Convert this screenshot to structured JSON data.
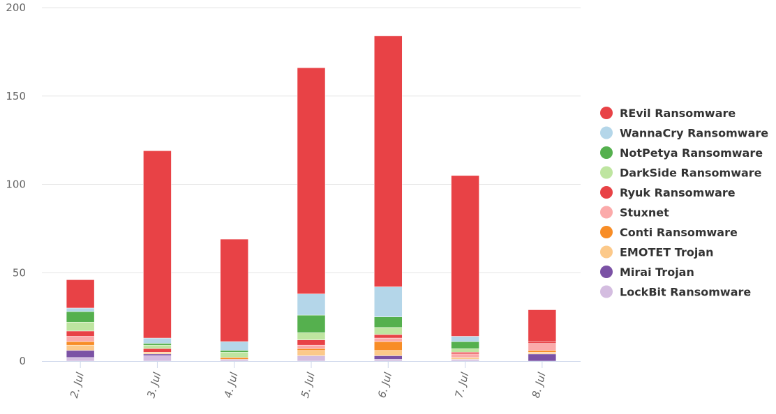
{
  "chart_data": {
    "type": "bar",
    "stacked": true,
    "categories": [
      "2. Jul",
      "3. Jul",
      "4. Jul",
      "5. Jul",
      "6. Jul",
      "7. Jul",
      "8. Jul"
    ],
    "ylim": [
      0,
      200
    ],
    "yticks": [
      0,
      50,
      100,
      150,
      200
    ],
    "grid": true,
    "legend_position": "right",
    "series": [
      {
        "name": "LockBit Ransomware",
        "color": "#d4bde0",
        "values": [
          2,
          3,
          1,
          3,
          1,
          1,
          0
        ]
      },
      {
        "name": "Mirai Trojan",
        "color": "#7b52a5",
        "values": [
          4,
          1,
          0,
          0,
          2,
          0,
          4
        ]
      },
      {
        "name": "EMOTET Trojan",
        "color": "#fcc98a",
        "values": [
          3,
          1,
          0,
          3,
          3,
          1,
          1
        ]
      },
      {
        "name": "Conti Ransomware",
        "color": "#f88d26",
        "values": [
          2,
          0,
          1,
          1,
          5,
          0,
          1
        ]
      },
      {
        "name": "Stuxnet",
        "color": "#fbaaaa",
        "values": [
          3,
          0,
          0,
          2,
          2,
          2,
          4
        ]
      },
      {
        "name": "Ryuk Ransomware",
        "color": "#e84246",
        "values": [
          3,
          2,
          0,
          3,
          2,
          1,
          1
        ]
      },
      {
        "name": "DarkSide Ransomware",
        "color": "#bee5a0",
        "values": [
          5,
          2,
          3,
          4,
          4,
          2,
          0
        ]
      },
      {
        "name": "NotPetya Ransomware",
        "color": "#55b04e",
        "values": [
          6,
          1,
          1,
          10,
          6,
          4,
          0
        ]
      },
      {
        "name": "WannaCry Ransomware",
        "color": "#b4d6e9",
        "values": [
          2,
          3,
          5,
          12,
          17,
          3,
          0
        ]
      },
      {
        "name": "REvil Ransomware",
        "color": "#e84246",
        "values": [
          16,
          106,
          58,
          128,
          142,
          91,
          18
        ]
      }
    ]
  }
}
